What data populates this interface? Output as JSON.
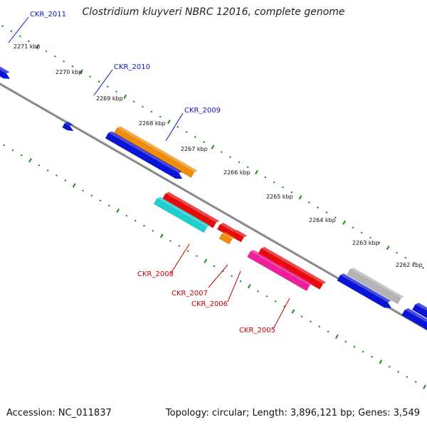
{
  "title": "Clostridium kluyveri NBRC 12016, complete genome",
  "footer": {
    "accession": "Accession: NC_011837",
    "summary": "Topology: circular; Length: 3,896,121 bp; Genes: 3,549"
  },
  "colors": {
    "backbone": "#808080",
    "tick": "#1a8a1a",
    "label_top": "#1010d0",
    "label_bottom": "#cc0000"
  },
  "scale": {
    "unit": "kbp",
    "ticks": [
      2271,
      2270,
      2269,
      2268,
      2267,
      2266,
      2265,
      2264,
      2263,
      2262
    ],
    "tick_labels": [
      "2271 kbp",
      "2270 kbp",
      "2269 kbp",
      "2268 kbp",
      "2267 kbp",
      "2266 kbp",
      "2265 kbp",
      "2264 kbp",
      "2263 kbp",
      "2262 kbp"
    ]
  },
  "labels": {
    "top": [
      "CKR_2011",
      "CKR_2010",
      "CKR_2009"
    ],
    "bottom": [
      "CKR_2008",
      "CKR_2007",
      "CKR_2006",
      "CKR_2005"
    ]
  },
  "genes": [
    {
      "color": "#0a14d8"
    },
    {
      "color": "#0a14d8"
    },
    {
      "color": "#f08c0a"
    },
    {
      "color": "#0a14d8"
    },
    {
      "color": "#e80a0a"
    },
    {
      "color": "#1ecfcf"
    },
    {
      "color": "#e80a0a"
    },
    {
      "color": "#e80a0a"
    },
    {
      "color": "#f08c0a"
    },
    {
      "color": "#e80a0a"
    },
    {
      "color": "#f01e9a"
    },
    {
      "color": "#b4b4b4"
    },
    {
      "color": "#0a14d8"
    },
    {
      "color": "#0a14d8"
    },
    {
      "color": "#0a14d8"
    }
  ]
}
